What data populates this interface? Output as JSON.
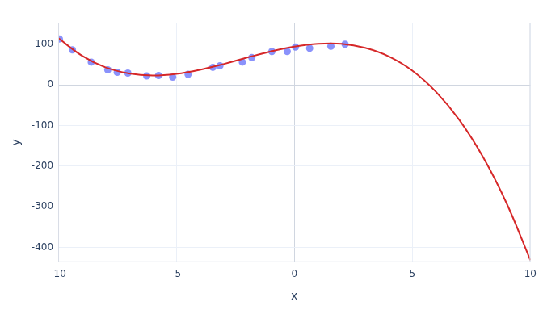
{
  "chart_data": {
    "type": "scatter",
    "x_label": "x",
    "y_label": "y",
    "xlim": [
      -10,
      10
    ],
    "xticks": [
      -10,
      -5,
      0,
      5,
      10
    ],
    "ylim": [
      -436,
      153
    ],
    "yticks": [
      -400,
      -300,
      -200,
      -100,
      0,
      100
    ],
    "grid": true,
    "series": [
      {
        "type": "scatter",
        "marker": "circle",
        "color": "#636efa",
        "x": [
          -9.95,
          -9.4,
          -8.6,
          -7.9,
          -7.5,
          -7.05,
          -6.25,
          -5.75,
          -5.15,
          -4.5,
          -3.45,
          -3.15,
          -2.2,
          -1.8,
          -0.95,
          -0.3,
          0.05,
          0.65,
          1.55,
          2.15
        ],
        "values": [
          113,
          86,
          56,
          37,
          31,
          29,
          22,
          23,
          19,
          26,
          43,
          47,
          56,
          67,
          82,
          82,
          93,
          90,
          95,
          100
        ]
      },
      {
        "type": "line",
        "line_style": "solid",
        "color": "#d62728",
        "x": [
          -10,
          -9,
          -8,
          -7,
          -6,
          -5,
          -4,
          -3,
          -2,
          -1,
          0,
          1,
          2,
          3,
          4,
          5,
          6,
          7,
          8,
          9,
          10
        ],
        "values": [
          115,
          72,
          43,
          28,
          23,
          27,
          37,
          51,
          67,
          82,
          94,
          101,
          101,
          91,
          70,
          35,
          -17,
          -87,
          -178,
          -292,
          -431
        ]
      }
    ]
  }
}
